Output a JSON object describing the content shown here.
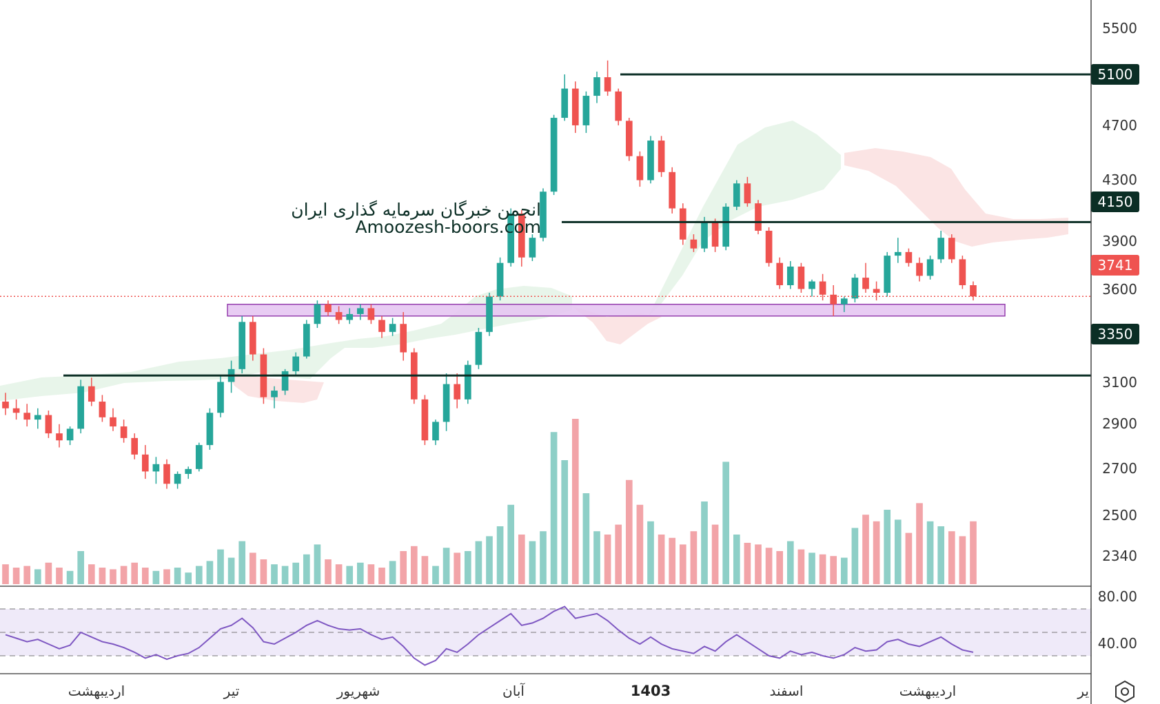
{
  "colors": {
    "up": "#26a69a",
    "down": "#ef5350",
    "up_volume": "#8ecfc7",
    "down_volume": "#f2a4a8",
    "level_line": "#0b2e25",
    "current_price": "#ef5350",
    "zone_fill": "#e6c7f2",
    "zone_stroke": "#8a2ba6",
    "rsi_line": "#7e57c2",
    "rsi_band": "#efeaf9",
    "cloud_bull": "#e6f4e8",
    "cloud_bear": "#fbe3e3",
    "watermark": "#0b2e25"
  },
  "watermark": {
    "line1": "انجمن خبرگان سرمایه گذاری ایران",
    "line2": "Amoozesh-boors.com"
  },
  "price_axis": {
    "ticks": [
      "5500",
      "4700",
      "4300",
      "3900",
      "3600",
      "3100",
      "2900",
      "2700",
      "2500",
      "2340"
    ],
    "level_labels": [
      "5100",
      "4150",
      "3350"
    ],
    "current_price_label": "3741"
  },
  "rsi_axis": {
    "ticks": [
      "80.00",
      "40.00"
    ]
  },
  "time_axis": {
    "labels": [
      "اردیبهشت",
      "تیر",
      "شهریور",
      "آبان",
      "1403",
      "اسفند",
      "اردیبهشت",
      "یر"
    ]
  },
  "logo_icon": "tradingview-settings-icon",
  "chart_data": {
    "type": "candlestick",
    "price_scale": "log",
    "price_range": [
      2800,
      5700
    ],
    "horizontal_levels": [
      5100,
      4150,
      3350
    ],
    "current_price": 3741,
    "support_zone": [
      3640,
      3700
    ],
    "ohlc": [
      [
        3230,
        3270,
        3170,
        3200
      ],
      [
        3200,
        3240,
        3150,
        3180
      ],
      [
        3180,
        3220,
        3120,
        3150
      ],
      [
        3150,
        3200,
        3110,
        3170
      ],
      [
        3170,
        3190,
        3070,
        3090
      ],
      [
        3090,
        3130,
        3030,
        3060
      ],
      [
        3060,
        3120,
        3040,
        3110
      ],
      [
        3110,
        3330,
        3090,
        3300
      ],
      [
        3300,
        3340,
        3210,
        3230
      ],
      [
        3230,
        3260,
        3140,
        3160
      ],
      [
        3160,
        3200,
        3100,
        3120
      ],
      [
        3120,
        3150,
        3050,
        3070
      ],
      [
        3070,
        3090,
        2980,
        3000
      ],
      [
        3000,
        3040,
        2900,
        2930
      ],
      [
        2930,
        2990,
        2880,
        2960
      ],
      [
        2960,
        2980,
        2860,
        2880
      ],
      [
        2880,
        2930,
        2860,
        2920
      ],
      [
        2920,
        2950,
        2900,
        2940
      ],
      [
        2940,
        3050,
        2930,
        3040
      ],
      [
        3040,
        3200,
        3020,
        3180
      ],
      [
        3180,
        3350,
        3160,
        3320
      ],
      [
        3320,
        3420,
        3270,
        3380
      ],
      [
        3380,
        3640,
        3360,
        3610
      ],
      [
        3610,
        3640,
        3420,
        3450
      ],
      [
        3450,
        3480,
        3220,
        3250
      ],
      [
        3250,
        3300,
        3200,
        3280
      ],
      [
        3280,
        3380,
        3260,
        3370
      ],
      [
        3370,
        3460,
        3350,
        3440
      ],
      [
        3440,
        3620,
        3430,
        3600
      ],
      [
        3600,
        3720,
        3580,
        3700
      ],
      [
        3700,
        3720,
        3640,
        3660
      ],
      [
        3660,
        3690,
        3600,
        3620
      ],
      [
        3620,
        3680,
        3600,
        3650
      ],
      [
        3650,
        3700,
        3620,
        3680
      ],
      [
        3680,
        3700,
        3600,
        3620
      ],
      [
        3620,
        3640,
        3530,
        3560
      ],
      [
        3560,
        3630,
        3540,
        3600
      ],
      [
        3600,
        3660,
        3420,
        3460
      ],
      [
        3460,
        3480,
        3220,
        3240
      ],
      [
        3240,
        3260,
        3040,
        3060
      ],
      [
        3060,
        3150,
        3040,
        3140
      ],
      [
        3140,
        3360,
        3100,
        3310
      ],
      [
        3310,
        3360,
        3200,
        3240
      ],
      [
        3240,
        3420,
        3220,
        3400
      ],
      [
        3400,
        3580,
        3380,
        3560
      ],
      [
        3560,
        3760,
        3540,
        3740
      ],
      [
        3740,
        3950,
        3720,
        3920
      ],
      [
        3920,
        4230,
        3900,
        4200
      ],
      [
        4200,
        4220,
        3900,
        3950
      ],
      [
        3950,
        4080,
        3930,
        4060
      ],
      [
        4060,
        4350,
        4040,
        4330
      ],
      [
        4330,
        4820,
        4310,
        4800
      ],
      [
        4800,
        5100,
        4780,
        5000
      ],
      [
        5000,
        5050,
        4700,
        4750
      ],
      [
        4750,
        4980,
        4700,
        4950
      ],
      [
        4950,
        5120,
        4900,
        5080
      ],
      [
        5080,
        5200,
        4950,
        4980
      ],
      [
        4980,
        5000,
        4750,
        4780
      ],
      [
        4780,
        4800,
        4520,
        4550
      ],
      [
        4550,
        4580,
        4360,
        4400
      ],
      [
        4400,
        4680,
        4380,
        4650
      ],
      [
        4650,
        4680,
        4420,
        4450
      ],
      [
        4450,
        4480,
        4200,
        4230
      ],
      [
        4230,
        4260,
        4020,
        4050
      ],
      [
        4050,
        4080,
        3980,
        4000
      ],
      [
        4000,
        4180,
        3980,
        4150
      ],
      [
        4150,
        4170,
        3980,
        4010
      ],
      [
        4010,
        4260,
        3990,
        4240
      ],
      [
        4240,
        4400,
        4220,
        4380
      ],
      [
        4380,
        4420,
        4240,
        4260
      ],
      [
        4260,
        4280,
        4080,
        4100
      ],
      [
        4100,
        4120,
        3900,
        3920
      ],
      [
        3920,
        3950,
        3780,
        3800
      ],
      [
        3800,
        3930,
        3780,
        3900
      ],
      [
        3900,
        3920,
        3760,
        3780
      ],
      [
        3780,
        3830,
        3740,
        3820
      ],
      [
        3820,
        3860,
        3720,
        3750
      ],
      [
        3750,
        3800,
        3640,
        3700
      ],
      [
        3700,
        3740,
        3660,
        3730
      ],
      [
        3730,
        3860,
        3710,
        3840
      ],
      [
        3840,
        3920,
        3760,
        3780
      ],
      [
        3780,
        3820,
        3720,
        3760
      ],
      [
        3760,
        3980,
        3740,
        3960
      ],
      [
        3960,
        4060,
        3920,
        3980
      ],
      [
        3980,
        4000,
        3900,
        3920
      ],
      [
        3920,
        3950,
        3820,
        3850
      ],
      [
        3850,
        3960,
        3830,
        3940
      ],
      [
        3940,
        4100,
        3920,
        4060
      ],
      [
        4060,
        4080,
        3920,
        3940
      ],
      [
        3940,
        3960,
        3780,
        3800
      ],
      [
        3800,
        3820,
        3720,
        3741
      ]
    ],
    "rsi": [
      58,
      55,
      52,
      54,
      50,
      46,
      49,
      60,
      56,
      52,
      50,
      47,
      43,
      38,
      41,
      37,
      40,
      42,
      47,
      55,
      63,
      66,
      72,
      64,
      52,
      50,
      55,
      60,
      66,
      70,
      66,
      63,
      62,
      63,
      58,
      54,
      56,
      48,
      38,
      32,
      36,
      46,
      43,
      50,
      58,
      64,
      70,
      76,
      66,
      68,
      72,
      78,
      82,
      72,
      74,
      76,
      70,
      62,
      55,
      50,
      56,
      50,
      46,
      44,
      42,
      48,
      44,
      52,
      58,
      52,
      46,
      40,
      38,
      44,
      41,
      43,
      40,
      38,
      41,
      47,
      44,
      45,
      52,
      54,
      50,
      48,
      52,
      56,
      50,
      45,
      43
    ],
    "volume": [
      1.2,
      1.0,
      1.1,
      0.9,
      1.3,
      1.0,
      0.8,
      2.0,
      1.2,
      1.0,
      0.9,
      1.1,
      1.3,
      1.0,
      0.8,
      0.9,
      1.0,
      0.7,
      1.1,
      1.4,
      2.1,
      1.6,
      2.6,
      1.9,
      1.5,
      1.2,
      1.1,
      1.3,
      1.8,
      2.4,
      1.5,
      1.2,
      1.1,
      1.3,
      1.2,
      1.0,
      1.4,
      2.0,
      2.3,
      1.7,
      1.1,
      2.2,
      1.9,
      2.0,
      2.6,
      2.9,
      3.5,
      4.8,
      3.0,
      2.6,
      3.2,
      9.2,
      7.5,
      10.0,
      5.5,
      3.2,
      3.0,
      3.6,
      6.3,
      4.8,
      3.8,
      3.0,
      2.8,
      2.4,
      3.2,
      5.0,
      3.6,
      7.4,
      3.0,
      2.5,
      2.4,
      2.2,
      2.0,
      2.6,
      2.1,
      1.9,
      1.8,
      1.7,
      1.6,
      3.4,
      4.2,
      3.8,
      4.5,
      3.9,
      3.1,
      4.9,
      3.8,
      3.5,
      3.2,
      2.9,
      3.8
    ]
  }
}
